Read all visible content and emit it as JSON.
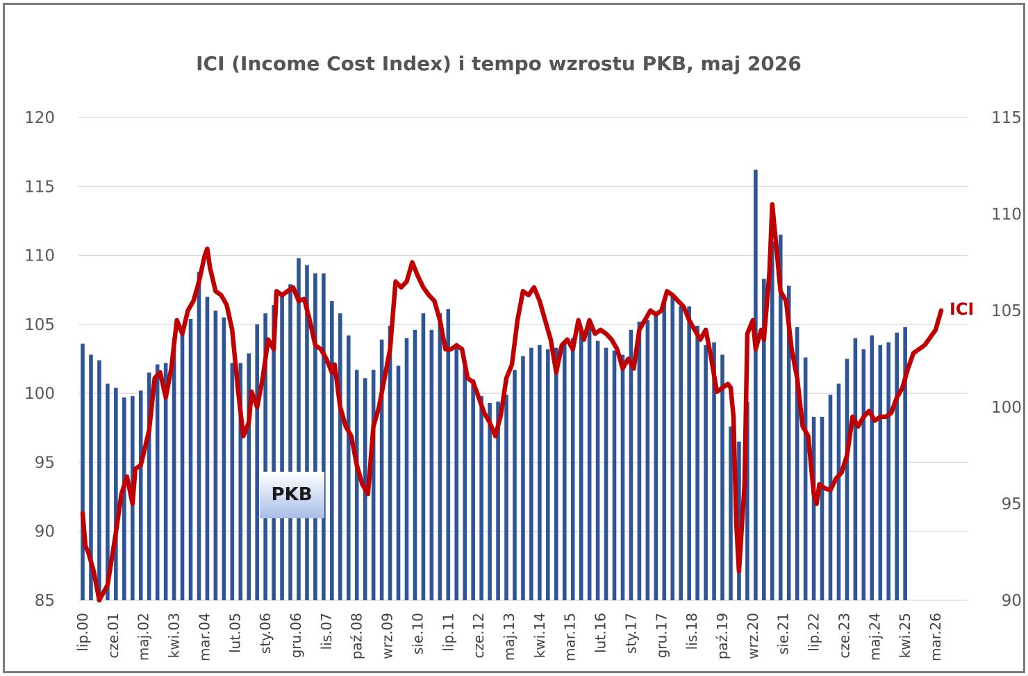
{
  "chart_data": {
    "type": "bar+line",
    "title": "ICI (Income Cost Index) i tempo wzrostu PKB, maj 2026",
    "left_axis": {
      "ticks": [
        "85",
        "90",
        "95",
        "100",
        "105",
        "110",
        "115",
        "120"
      ],
      "range": [
        85,
        120
      ]
    },
    "right_axis": {
      "ticks": [
        "90",
        "95",
        "100",
        "105",
        "110",
        "115"
      ],
      "range": [
        90,
        115
      ]
    },
    "x_axis": {
      "labels": [
        "lip.00",
        "cze.01",
        "maj.02",
        "kwi.03",
        "mar.04",
        "lut.05",
        "sty.06",
        "gru.06",
        "lis.07",
        "paź.08",
        "wrz.09",
        "sie.10",
        "lip.11",
        "cze.12",
        "maj.13",
        "kwi.14",
        "mar.15",
        "lut.16",
        "sty.17",
        "gru.17",
        "lis.18",
        "paź.19",
        "wrz.20",
        "sie.21",
        "lip.22",
        "cze.23",
        "maj.24",
        "kwi.25",
        "mar.26"
      ],
      "start": "2000-07",
      "end": "2026-05",
      "label_step_months": 11
    },
    "series": [
      {
        "name": "PKB",
        "type": "bar",
        "axis": "left",
        "color": "#2f5597",
        "frequency": "quarterly",
        "points": [
          [
            "2000-07",
            103.6
          ],
          [
            "2000-10",
            102.8
          ],
          [
            "2001-01",
            102.4
          ],
          [
            "2001-04",
            100.7
          ],
          [
            "2001-07",
            100.4
          ],
          [
            "2001-10",
            99.7
          ],
          [
            "2002-01",
            99.8
          ],
          [
            "2002-04",
            100.2
          ],
          [
            "2002-07",
            101.5
          ],
          [
            "2002-10",
            102.1
          ],
          [
            "2003-01",
            102.2
          ],
          [
            "2003-04",
            104.0
          ],
          [
            "2003-07",
            104.6
          ],
          [
            "2003-10",
            105.4
          ],
          [
            "2004-01",
            108.8
          ],
          [
            "2004-04",
            107.0
          ],
          [
            "2004-07",
            106.0
          ],
          [
            "2004-10",
            105.5
          ],
          [
            "2005-01",
            102.2
          ],
          [
            "2005-04",
            102.2
          ],
          [
            "2005-07",
            102.9
          ],
          [
            "2005-10",
            105.0
          ],
          [
            "2006-01",
            105.8
          ],
          [
            "2006-04",
            106.4
          ],
          [
            "2006-07",
            107.3
          ],
          [
            "2006-10",
            107.9
          ],
          [
            "2007-01",
            109.8
          ],
          [
            "2007-04",
            109.3
          ],
          [
            "2007-07",
            108.7
          ],
          [
            "2007-10",
            108.7
          ],
          [
            "2008-01",
            106.7
          ],
          [
            "2008-04",
            105.8
          ],
          [
            "2008-07",
            104.2
          ],
          [
            "2008-10",
            101.7
          ],
          [
            "2009-01",
            101.1
          ],
          [
            "2009-04",
            101.7
          ],
          [
            "2009-07",
            103.9
          ],
          [
            "2009-10",
            104.9
          ],
          [
            "2010-01",
            102.0
          ],
          [
            "2010-04",
            104.0
          ],
          [
            "2010-07",
            104.6
          ],
          [
            "2010-10",
            105.8
          ],
          [
            "2011-01",
            104.6
          ],
          [
            "2011-04",
            105.8
          ],
          [
            "2011-07",
            106.1
          ],
          [
            "2011-10",
            103.6
          ],
          [
            "2012-01",
            102.2
          ],
          [
            "2012-04",
            101.0
          ],
          [
            "2012-07",
            99.8
          ],
          [
            "2012-10",
            99.3
          ],
          [
            "2013-01",
            99.4
          ],
          [
            "2013-04",
            99.9
          ],
          [
            "2013-07",
            101.7
          ],
          [
            "2013-10",
            102.7
          ],
          [
            "2014-01",
            103.3
          ],
          [
            "2014-04",
            103.5
          ],
          [
            "2014-07",
            103.2
          ],
          [
            "2014-10",
            103.3
          ],
          [
            "2015-01",
            103.7
          ],
          [
            "2015-04",
            104.0
          ],
          [
            "2015-07",
            104.6
          ],
          [
            "2015-10",
            105.1
          ],
          [
            "2016-01",
            103.8
          ],
          [
            "2016-04",
            103.3
          ],
          [
            "2016-07",
            103.1
          ],
          [
            "2016-10",
            102.8
          ],
          [
            "2017-01",
            104.6
          ],
          [
            "2017-04",
            105.2
          ],
          [
            "2017-07",
            105.3
          ],
          [
            "2017-10",
            105.8
          ],
          [
            "2018-01",
            106.8
          ],
          [
            "2018-04",
            107.1
          ],
          [
            "2018-07",
            106.3
          ],
          [
            "2018-10",
            106.3
          ],
          [
            "2019-01",
            104.9
          ],
          [
            "2019-04",
            103.5
          ],
          [
            "2019-07",
            103.7
          ],
          [
            "2019-10",
            102.8
          ],
          [
            "2020-01",
            97.6
          ],
          [
            "2020-04",
            96.5
          ],
          [
            "2020-07",
            99.4
          ],
          [
            "2020-10",
            116.2
          ],
          [
            "2021-01",
            108.3
          ],
          [
            "2021-04",
            111.0
          ],
          [
            "2021-07",
            111.5
          ],
          [
            "2021-10",
            107.8
          ],
          [
            "2022-01",
            104.8
          ],
          [
            "2022-04",
            102.6
          ],
          [
            "2022-07",
            98.3
          ],
          [
            "2022-10",
            98.3
          ],
          [
            "2023-01",
            99.9
          ],
          [
            "2023-04",
            100.7
          ],
          [
            "2023-07",
            102.5
          ],
          [
            "2023-10",
            104.0
          ],
          [
            "2024-01",
            103.2
          ],
          [
            "2024-04",
            104.2
          ],
          [
            "2024-07",
            103.5
          ],
          [
            "2024-10",
            103.7
          ],
          [
            "2025-01",
            104.4
          ],
          [
            "2025-04",
            104.8
          ]
        ]
      },
      {
        "name": "ICI",
        "type": "line",
        "axis": "right",
        "color": "#c00000",
        "frequency": "monthly",
        "points": [
          [
            "2000-07",
            94.5
          ],
          [
            "2000-08",
            92.8
          ],
          [
            "2000-09",
            92.5
          ],
          [
            "2000-11",
            91.5
          ],
          [
            "2001-01",
            90.0
          ],
          [
            "2001-04",
            90.8
          ],
          [
            "2001-07",
            93.5
          ],
          [
            "2001-09",
            95.5
          ],
          [
            "2001-11",
            96.4
          ],
          [
            "2002-01",
            95.0
          ],
          [
            "2002-02",
            96.8
          ],
          [
            "2002-04",
            97.0
          ],
          [
            "2002-07",
            98.8
          ],
          [
            "2002-09",
            101.5
          ],
          [
            "2002-11",
            101.8
          ],
          [
            "2003-01",
            100.5
          ],
          [
            "2003-03",
            102.0
          ],
          [
            "2003-05",
            104.5
          ],
          [
            "2003-07",
            103.8
          ],
          [
            "2003-09",
            105.0
          ],
          [
            "2003-11",
            105.5
          ],
          [
            "2004-01",
            106.5
          ],
          [
            "2004-03",
            107.8
          ],
          [
            "2004-04",
            108.2
          ],
          [
            "2004-05",
            107.2
          ],
          [
            "2004-07",
            106.0
          ],
          [
            "2004-09",
            105.8
          ],
          [
            "2004-11",
            105.3
          ],
          [
            "2005-01",
            104.0
          ],
          [
            "2005-03",
            101.0
          ],
          [
            "2005-05",
            98.5
          ],
          [
            "2005-07",
            99.2
          ],
          [
            "2005-08",
            100.8
          ],
          [
            "2005-10",
            100.0
          ],
          [
            "2005-12",
            101.5
          ],
          [
            "2006-02",
            103.5
          ],
          [
            "2006-04",
            103.0
          ],
          [
            "2006-05",
            106.0
          ],
          [
            "2006-07",
            105.8
          ],
          [
            "2006-09",
            106.0
          ],
          [
            "2006-11",
            106.2
          ],
          [
            "2007-01",
            105.5
          ],
          [
            "2007-03",
            105.6
          ],
          [
            "2007-05",
            104.5
          ],
          [
            "2007-07",
            103.2
          ],
          [
            "2007-09",
            103.0
          ],
          [
            "2007-11",
            102.5
          ],
          [
            "2008-01",
            101.8
          ],
          [
            "2008-02",
            102.2
          ],
          [
            "2008-04",
            100.0
          ],
          [
            "2008-06",
            99.0
          ],
          [
            "2008-08",
            98.5
          ],
          [
            "2008-10",
            97.0
          ],
          [
            "2008-12",
            96.0
          ],
          [
            "2009-02",
            95.5
          ],
          [
            "2009-04",
            99.0
          ],
          [
            "2009-06",
            100.0
          ],
          [
            "2009-08",
            101.5
          ],
          [
            "2009-10",
            103.0
          ],
          [
            "2009-12",
            106.5
          ],
          [
            "2010-02",
            106.2
          ],
          [
            "2010-04",
            106.5
          ],
          [
            "2010-06",
            107.5
          ],
          [
            "2010-08",
            106.8
          ],
          [
            "2010-10",
            106.2
          ],
          [
            "2010-12",
            105.8
          ],
          [
            "2011-02",
            105.5
          ],
          [
            "2011-04",
            104.5
          ],
          [
            "2011-06",
            103.0
          ],
          [
            "2011-08",
            103.0
          ],
          [
            "2011-10",
            103.2
          ],
          [
            "2011-12",
            103.0
          ],
          [
            "2012-02",
            101.5
          ],
          [
            "2012-04",
            101.3
          ],
          [
            "2012-06",
            100.5
          ],
          [
            "2012-08",
            99.7
          ],
          [
            "2012-10",
            99.2
          ],
          [
            "2012-12",
            98.5
          ],
          [
            "2013-02",
            99.6
          ],
          [
            "2013-04",
            101.5
          ],
          [
            "2013-06",
            102.2
          ],
          [
            "2013-08",
            104.5
          ],
          [
            "2013-10",
            106.0
          ],
          [
            "2013-12",
            105.8
          ],
          [
            "2014-02",
            106.2
          ],
          [
            "2014-04",
            105.5
          ],
          [
            "2014-06",
            104.5
          ],
          [
            "2014-08",
            103.5
          ],
          [
            "2014-10",
            101.8
          ],
          [
            "2014-12",
            103.2
          ],
          [
            "2015-02",
            103.5
          ],
          [
            "2015-04",
            103.0
          ],
          [
            "2015-06",
            104.5
          ],
          [
            "2015-08",
            103.5
          ],
          [
            "2015-10",
            104.5
          ],
          [
            "2015-12",
            103.8
          ],
          [
            "2016-02",
            104.0
          ],
          [
            "2016-04",
            103.8
          ],
          [
            "2016-06",
            103.5
          ],
          [
            "2016-08",
            103.0
          ],
          [
            "2016-10",
            102.0
          ],
          [
            "2016-12",
            102.5
          ],
          [
            "2017-02",
            102.0
          ],
          [
            "2017-04",
            104.0
          ],
          [
            "2017-06",
            104.5
          ],
          [
            "2017-08",
            105.0
          ],
          [
            "2017-10",
            104.8
          ],
          [
            "2017-12",
            105.0
          ],
          [
            "2018-02",
            106.0
          ],
          [
            "2018-04",
            105.8
          ],
          [
            "2018-06",
            105.5
          ],
          [
            "2018-08",
            105.2
          ],
          [
            "2018-10",
            104.5
          ],
          [
            "2018-12",
            104.0
          ],
          [
            "2019-02",
            103.5
          ],
          [
            "2019-04",
            104.0
          ],
          [
            "2019-06",
            102.5
          ],
          [
            "2019-08",
            100.8
          ],
          [
            "2019-10",
            101.0
          ],
          [
            "2019-12",
            101.2
          ],
          [
            "2020-01",
            101.0
          ],
          [
            "2020-02",
            99.5
          ],
          [
            "2020-03",
            94.0
          ],
          [
            "2020-04",
            91.5
          ],
          [
            "2020-06",
            96.0
          ],
          [
            "2020-07",
            103.8
          ],
          [
            "2020-09",
            104.5
          ],
          [
            "2020-10",
            103.0
          ],
          [
            "2020-12",
            104.0
          ],
          [
            "2021-01",
            103.5
          ],
          [
            "2021-03",
            107.0
          ],
          [
            "2021-04",
            110.5
          ],
          [
            "2021-05",
            109.0
          ],
          [
            "2021-07",
            106.0
          ],
          [
            "2021-09",
            105.5
          ],
          [
            "2021-11",
            103.0
          ],
          [
            "2022-01",
            101.5
          ],
          [
            "2022-03",
            99.0
          ],
          [
            "2022-05",
            98.5
          ],
          [
            "2022-07",
            95.5
          ],
          [
            "2022-08",
            95.0
          ],
          [
            "2022-09",
            96.0
          ],
          [
            "2022-11",
            95.8
          ],
          [
            "2023-01",
            95.7
          ],
          [
            "2023-03",
            96.3
          ],
          [
            "2023-05",
            96.6
          ],
          [
            "2023-07",
            97.5
          ],
          [
            "2023-09",
            99.5
          ],
          [
            "2023-11",
            99.0
          ],
          [
            "2024-01",
            99.5
          ],
          [
            "2024-03",
            99.8
          ],
          [
            "2024-05",
            99.3
          ],
          [
            "2024-07",
            99.5
          ],
          [
            "2024-09",
            99.5
          ],
          [
            "2024-11",
            99.7
          ],
          [
            "2025-01",
            100.5
          ],
          [
            "2025-03",
            101.0
          ],
          [
            "2025-05",
            102.0
          ],
          [
            "2025-07",
            102.8
          ],
          [
            "2025-09",
            103.0
          ],
          [
            "2025-11",
            103.2
          ],
          [
            "2026-01",
            103.6
          ],
          [
            "2026-03",
            104.0
          ],
          [
            "2026-04",
            104.5
          ],
          [
            "2026-05",
            105.0
          ]
        ]
      }
    ],
    "grid": true,
    "legend": "inline labels"
  }
}
